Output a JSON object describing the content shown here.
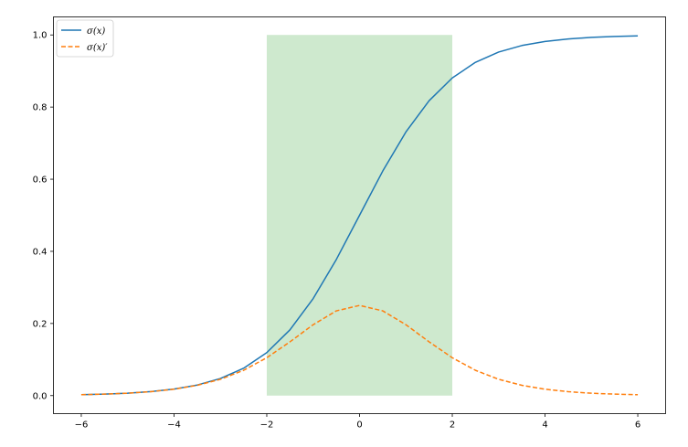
{
  "chart_data": {
    "type": "line",
    "title": "",
    "xlabel": "",
    "ylabel": "",
    "xlim": [
      -6.6,
      6.6
    ],
    "ylim": [
      -0.05,
      1.05
    ],
    "xticks": [
      -6,
      -4,
      -2,
      0,
      2,
      4,
      6
    ],
    "yticks": [
      0.0,
      0.2,
      0.4,
      0.6,
      0.8,
      1.0
    ],
    "xtick_labels": [
      "−6",
      "−4",
      "−2",
      "0",
      "2",
      "4",
      "6"
    ],
    "ytick_labels": [
      "0.0",
      "0.2",
      "0.4",
      "0.6",
      "0.8",
      "1.0"
    ],
    "grid": false,
    "legend_position": "top-left",
    "x": [
      -6.0,
      -5.5,
      -5.0,
      -4.5,
      -4.0,
      -3.5,
      -3.0,
      -2.5,
      -2.0,
      -1.5,
      -1.0,
      -0.5,
      0.0,
      0.5,
      1.0,
      1.5,
      2.0,
      2.5,
      3.0,
      3.5,
      4.0,
      4.5,
      5.0,
      5.5,
      6.0
    ],
    "series": [
      {
        "name": "σ(x)",
        "style": "solid",
        "color": "#1f77b4",
        "values": [
          0.0025,
          0.0041,
          0.0067,
          0.011,
          0.018,
          0.0293,
          0.0474,
          0.0759,
          0.1192,
          0.1824,
          0.2689,
          0.3775,
          0.5,
          0.6225,
          0.7311,
          0.8176,
          0.8808,
          0.9241,
          0.9526,
          0.9707,
          0.982,
          0.989,
          0.9933,
          0.9959,
          0.9975
        ]
      },
      {
        "name": "σ(x)′",
        "style": "dashed",
        "color": "#ff7f0e",
        "values": [
          0.0025,
          0.0041,
          0.0066,
          0.0109,
          0.0177,
          0.0285,
          0.0452,
          0.0701,
          0.105,
          0.1491,
          0.1966,
          0.235,
          0.25,
          0.235,
          0.1966,
          0.1491,
          0.105,
          0.0701,
          0.0452,
          0.0285,
          0.0177,
          0.0109,
          0.0066,
          0.0041,
          0.0025
        ]
      }
    ],
    "shaded_region": {
      "x_range": [
        -2,
        2
      ],
      "y_range": [
        0,
        1
      ],
      "color": "#2ca02c",
      "opacity": 0.23
    }
  }
}
